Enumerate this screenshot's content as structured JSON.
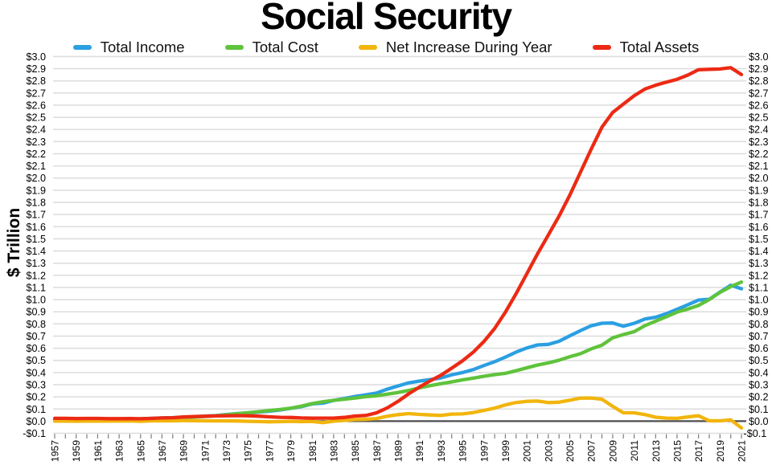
{
  "title": "Social Security",
  "y_axis_title": "$ Trillion",
  "chart_data": {
    "type": "line",
    "title": "Social Security",
    "xlabel": "",
    "ylabel": "$ Trillion",
    "ylim": [
      -0.1,
      3.0
    ],
    "ytick_step": 0.1,
    "ytick_labels": [
      "$3.0",
      "$2.9",
      "$2.8",
      "$2.7",
      "$2.6",
      "$2.5",
      "$2.4",
      "$2.3",
      "$2.2",
      "$2.1",
      "$2.0",
      "$1.9",
      "$1.8",
      "$1.7",
      "$1.6",
      "$1.5",
      "$1.4",
      "$1.3",
      "$1.2",
      "$1.1",
      "$1.0",
      "$0.9",
      "$0.8",
      "$0.7",
      "$0.6",
      "$0.5",
      "$0.4",
      "$0.3",
      "$0.2",
      "$0.1",
      "$0.0",
      "-$0.1"
    ],
    "x_start": 1957,
    "x_end": 2021,
    "xtick_labels": [
      "1957",
      "1959",
      "1961",
      "1963",
      "1965",
      "1967",
      "1969",
      "1971",
      "1973",
      "1975",
      "1977",
      "1979",
      "1981",
      "1983",
      "1985",
      "1987",
      "1989",
      "1991",
      "1993",
      "1995",
      "1997",
      "1999",
      "2001",
      "2003",
      "2005",
      "2007",
      "2009",
      "2011",
      "2013",
      "2015",
      "2017",
      "2019",
      "2021"
    ],
    "grid": true,
    "legend_position": "top",
    "units": "trillions of dollars",
    "series": [
      {
        "name": "Total Income",
        "color": "#2B9FE2",
        "values": [
          0.0081,
          0.0091,
          0.0095,
          0.0124,
          0.0129,
          0.0137,
          0.0162,
          0.0175,
          0.0179,
          0.0234,
          0.0264,
          0.0285,
          0.0333,
          0.0363,
          0.0409,
          0.0456,
          0.0548,
          0.0621,
          0.0676,
          0.075,
          0.082,
          0.0919,
          0.1059,
          0.1197,
          0.1424,
          0.1479,
          0.1713,
          0.1866,
          0.2035,
          0.2168,
          0.231,
          0.2635,
          0.2894,
          0.3154,
          0.3297,
          0.3426,
          0.3556,
          0.3811,
          0.3995,
          0.4245,
          0.4577,
          0.4892,
          0.5266,
          0.5684,
          0.602,
          0.6271,
          0.6319,
          0.6577,
          0.7018,
          0.7449,
          0.7849,
          0.8053,
          0.8075,
          0.7811,
          0.8051,
          0.8402,
          0.855,
          0.8843,
          0.9202,
          0.9575,
          0.9966,
          1.0034,
          1.0618,
          1.1181,
          1.0888
        ]
      },
      {
        "name": "Total Cost",
        "color": "#5FC33C",
        "values": [
          0.0075,
          0.0086,
          0.0103,
          0.0118,
          0.0127,
          0.014,
          0.0151,
          0.0156,
          0.0192,
          0.0209,
          0.0225,
          0.026,
          0.0279,
          0.0331,
          0.0385,
          0.0433,
          0.0531,
          0.0606,
          0.0692,
          0.0782,
          0.0873,
          0.096,
          0.1073,
          0.1235,
          0.1444,
          0.1601,
          0.1712,
          0.1804,
          0.1906,
          0.2015,
          0.2091,
          0.2225,
          0.2362,
          0.2531,
          0.2742,
          0.2919,
          0.3088,
          0.323,
          0.3398,
          0.3536,
          0.3691,
          0.3823,
          0.3929,
          0.4151,
          0.4389,
          0.4617,
          0.4791,
          0.5016,
          0.5299,
          0.5554,
          0.5945,
          0.6251,
          0.6858,
          0.7125,
          0.7361,
          0.7858,
          0.8229,
          0.8592,
          0.8971,
          0.9223,
          0.9525,
          1.0002,
          1.0593,
          1.1072,
          1.1445
        ]
      },
      {
        "name": "Net Increase During Year",
        "color": "#F2B50D",
        "values": [
          0.0006,
          0.0005,
          -0.0008,
          0.0006,
          0.0002,
          -0.0003,
          0.0011,
          0.0019,
          -0.0013,
          0.0025,
          0.0039,
          0.0025,
          0.0054,
          0.0032,
          0.0024,
          0.0023,
          0.0017,
          0.0015,
          -0.0016,
          -0.0032,
          -0.0053,
          -0.0041,
          -0.0014,
          -0.0038,
          -0.002,
          -0.0122,
          0.0001,
          0.0062,
          0.0129,
          0.0153,
          0.0219,
          0.041,
          0.0532,
          0.0623,
          0.0555,
          0.0507,
          0.0468,
          0.0581,
          0.0597,
          0.0709,
          0.0886,
          0.1069,
          0.1337,
          0.1533,
          0.1631,
          0.1654,
          0.1528,
          0.1561,
          0.1719,
          0.1895,
          0.1904,
          0.1802,
          0.1217,
          0.0686,
          0.069,
          0.0544,
          0.0321,
          0.0251,
          0.0231,
          0.0352,
          0.0441,
          0.0032,
          0.0025,
          0.0109,
          -0.0557
        ]
      },
      {
        "name": "Total Assets",
        "color": "#EC2A14",
        "values": [
          0.023,
          0.0232,
          0.022,
          0.0226,
          0.0222,
          0.0207,
          0.0207,
          0.0212,
          0.0198,
          0.0223,
          0.0263,
          0.0287,
          0.0342,
          0.0381,
          0.0404,
          0.0428,
          0.0444,
          0.0459,
          0.0443,
          0.0411,
          0.0359,
          0.0317,
          0.0303,
          0.0265,
          0.0245,
          0.0248,
          0.0249,
          0.0311,
          0.0422,
          0.0469,
          0.0688,
          0.1098,
          0.163,
          0.2253,
          0.2807,
          0.3315,
          0.3783,
          0.4364,
          0.4961,
          0.567,
          0.6555,
          0.7625,
          0.8961,
          1.0494,
          1.2125,
          1.378,
          1.5308,
          1.6868,
          1.8587,
          2.0481,
          2.2385,
          2.4187,
          2.5403,
          2.609,
          2.6779,
          2.7323,
          2.7644,
          2.7895,
          2.8125,
          2.8477,
          2.8918,
          2.8949,
          2.8974,
          2.9083,
          2.852
        ]
      }
    ]
  },
  "colors": {
    "grid": "#dcdcdc",
    "zero_line": "#4d4d4d",
    "tick": "#7d7d7d",
    "text": "#000000",
    "background": "#ffffff"
  }
}
